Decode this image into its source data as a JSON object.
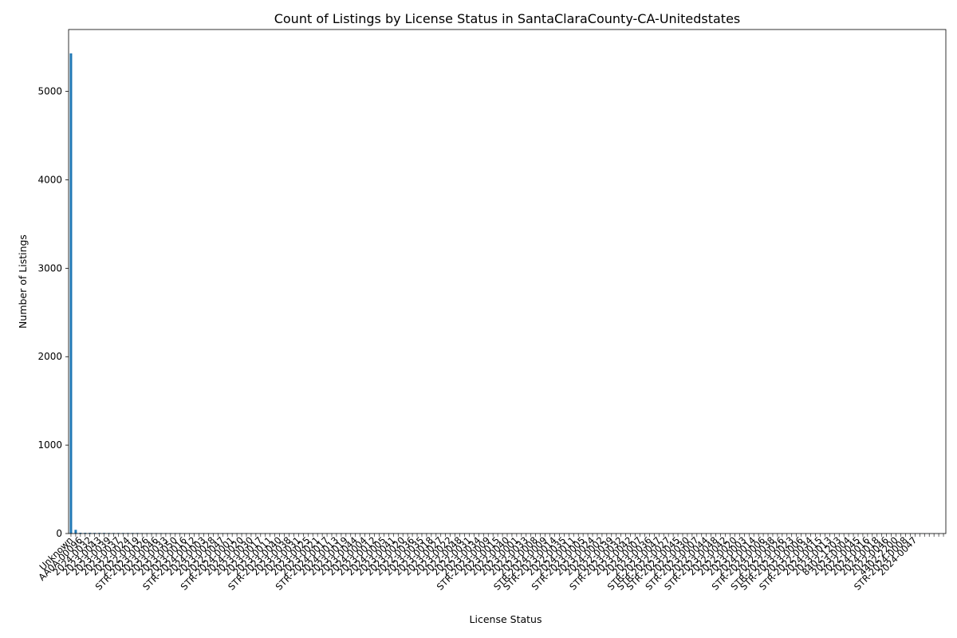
{
  "chart_data": {
    "type": "bar",
    "title": "Count of Listings by License Status in SantaClaraCounty-CA-Unitedstates",
    "xlabel": "License Status",
    "ylabel": "Number of Listings",
    "ylim": [
      0,
      5700
    ],
    "yticks": [
      0,
      1000,
      2000,
      3000,
      4000,
      5000
    ],
    "bar_color": "#1f77b4",
    "total_categories": 185,
    "categories": [
      "Unknown",
      "AA0A-00096",
      "2024-0032",
      "2023-0043",
      "2023-0039",
      "2023-0037",
      "2022-0024",
      "2022-0019",
      "STR-2023-0026",
      "2023-0046",
      "2023-0033",
      "2023-0050",
      "2023-0016",
      "STR-2024-0012",
      "2024-0003",
      "2023-0028",
      "2022-0047",
      "STR-2024-0001",
      "2024-0020",
      "2023-0030",
      "2023-0017",
      "2023-0011",
      "STR-2023-0040",
      "2023-0038",
      "2023-0031",
      "2023-0025",
      "2023-0021",
      "STR-2024-0017",
      "2024-0013",
      "2023-0019",
      "2023-0044",
      "2024-0004",
      "2023-0012",
      "2024-0005",
      "2023-0041",
      "2023-0020",
      "2022-0036",
      "2023-0035",
      "2023-0018",
      "2023-0027",
      "2023-0022",
      "2022-0048",
      "2022-0031",
      "2023-0034",
      "STR-2023-0009",
      "2023-0015",
      "2022-0040",
      "2023-0001",
      "2022-0033",
      "2023-0008",
      "STR-2024-0009",
      "STR-2023-0014",
      "2022-0035",
      "2024-0011",
      "STR-2023-0005",
      "2023-0024",
      "2024-0002",
      "2022-0039",
      "STR-2023-0032",
      "2023-0042",
      "2024-0007",
      "2023-0036",
      "STR-2023-0047",
      "STR-2022-0027",
      "STR-2023-0045",
      "2022-0030",
      "STR-2023-0007",
      "2022-0044",
      "STR-2023-0048",
      "2022-0042",
      "2022-0020",
      "2023-0003",
      "2024-0014",
      "STR-2024-0006",
      "2022-0038",
      "STR-2022-0026",
      "STR-2023-0023",
      "2023-0006",
      "STR-2022-0034",
      "2024-0015",
      "2023-0013",
      "8402-1203",
      "2023-0004",
      "2022-0045",
      "2024-0016",
      "2024-0018",
      "2022-0046",
      "4402-2200",
      "STR-2024-0008",
      "2024-0047"
    ],
    "label_step": 2,
    "values": [
      5430,
      42,
      9,
      8,
      8,
      7,
      7,
      7,
      6,
      6,
      6,
      6,
      6,
      6,
      6,
      5,
      5,
      5,
      5,
      5,
      5,
      5,
      5,
      5,
      4,
      4,
      4,
      4,
      4,
      4,
      4,
      4,
      4,
      4,
      4,
      4,
      4,
      4,
      3,
      3,
      3,
      3,
      3,
      3,
      3,
      3,
      3,
      3,
      3,
      3,
      3,
      3,
      3,
      3,
      3,
      3,
      3,
      3,
      3,
      3,
      3,
      3,
      3,
      3,
      3,
      3,
      3,
      3,
      3,
      3,
      3,
      3,
      3,
      3,
      3,
      3,
      3,
      3,
      3,
      3,
      3,
      3,
      3,
      3,
      3,
      3,
      3,
      3,
      3,
      3
    ]
  }
}
